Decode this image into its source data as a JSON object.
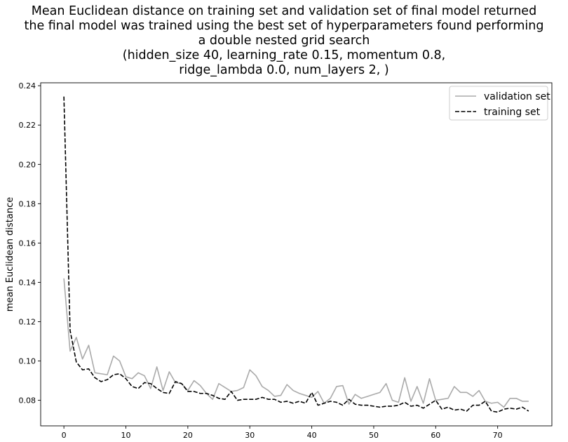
{
  "chart_data": {
    "type": "line",
    "title_lines": [
      "Mean Euclidean distance on training set and validation set of final model returned",
      "the final model was trained using the best set of hyperparameters found performing",
      "a double nested grid search",
      "(hidden_size 40, learning_rate 0.15, momentum 0.8,",
      "ridge_lambda 0.0, num_layers 2, )"
    ],
    "xlabel": "",
    "ylabel": "mean Euclidean distance",
    "xlim": [
      -3.75,
      78.75
    ],
    "ylim": [
      0.067,
      0.2415
    ],
    "xticks": [
      0,
      10,
      20,
      30,
      40,
      50,
      60,
      70
    ],
    "yticks": [
      0.08,
      0.1,
      0.12,
      0.14,
      0.16,
      0.18,
      0.2,
      0.22,
      0.24
    ],
    "ytick_labels": [
      "0.08",
      "0.10",
      "0.12",
      "0.14",
      "0.16",
      "0.18",
      "0.20",
      "0.22",
      "0.24"
    ],
    "grid": false,
    "legend": {
      "position": "top-right",
      "entries": [
        "validation set",
        "training set"
      ]
    },
    "x": [
      0,
      1,
      2,
      3,
      4,
      5,
      6,
      7,
      8,
      9,
      10,
      11,
      12,
      13,
      14,
      15,
      16,
      17,
      18,
      19,
      20,
      21,
      22,
      23,
      24,
      25,
      26,
      27,
      28,
      29,
      30,
      31,
      32,
      33,
      34,
      35,
      36,
      37,
      38,
      39,
      40,
      41,
      42,
      43,
      44,
      45,
      46,
      47,
      48,
      49,
      50,
      51,
      52,
      53,
      54,
      55,
      56,
      57,
      58,
      59,
      60,
      61,
      62,
      63,
      64,
      65,
      66,
      67,
      68,
      69,
      70,
      71,
      72,
      73,
      74,
      75
    ],
    "series": [
      {
        "name": "validation set",
        "color": "#aaaaaa",
        "dash": "solid",
        "values": [
          0.142,
          0.105,
          0.112,
          0.101,
          0.108,
          0.094,
          0.0935,
          0.093,
          0.1025,
          0.1,
          0.092,
          0.091,
          0.094,
          0.0925,
          0.086,
          0.097,
          0.085,
          0.0945,
          0.089,
          0.0885,
          0.085,
          0.09,
          0.0875,
          0.0835,
          0.0805,
          0.0885,
          0.0865,
          0.0845,
          0.085,
          0.0865,
          0.0955,
          0.0925,
          0.087,
          0.085,
          0.082,
          0.0825,
          0.088,
          0.085,
          0.0835,
          0.0825,
          0.0815,
          0.0845,
          0.0785,
          0.081,
          0.087,
          0.0875,
          0.078,
          0.083,
          0.081,
          0.082,
          0.083,
          0.084,
          0.0885,
          0.08,
          0.079,
          0.0915,
          0.0795,
          0.087,
          0.0785,
          0.091,
          0.08,
          0.0805,
          0.081,
          0.087,
          0.084,
          0.084,
          0.082,
          0.085,
          0.0795,
          0.0785,
          0.079,
          0.0765,
          0.081,
          0.081,
          0.0795,
          0.0795
        ]
      },
      {
        "name": "training set",
        "color": "#000000",
        "dash": "dashed",
        "values": [
          0.2345,
          0.1155,
          0.0995,
          0.0955,
          0.096,
          0.0915,
          0.0895,
          0.0905,
          0.093,
          0.0935,
          0.091,
          0.087,
          0.086,
          0.089,
          0.0885,
          0.086,
          0.084,
          0.0835,
          0.0895,
          0.0885,
          0.0845,
          0.0845,
          0.0835,
          0.0835,
          0.0825,
          0.081,
          0.0805,
          0.0845,
          0.08,
          0.0805,
          0.0805,
          0.0805,
          0.0815,
          0.0805,
          0.0805,
          0.079,
          0.0795,
          0.0785,
          0.0795,
          0.0785,
          0.084,
          0.0775,
          0.0785,
          0.0795,
          0.079,
          0.0775,
          0.0805,
          0.078,
          0.0775,
          0.0775,
          0.077,
          0.0765,
          0.077,
          0.077,
          0.0775,
          0.079,
          0.077,
          0.0775,
          0.076,
          0.078,
          0.08,
          0.0755,
          0.0765,
          0.075,
          0.0755,
          0.0745,
          0.0775,
          0.0775,
          0.0795,
          0.0745,
          0.074,
          0.0755,
          0.076,
          0.0755,
          0.0765,
          0.0745
        ]
      }
    ]
  }
}
